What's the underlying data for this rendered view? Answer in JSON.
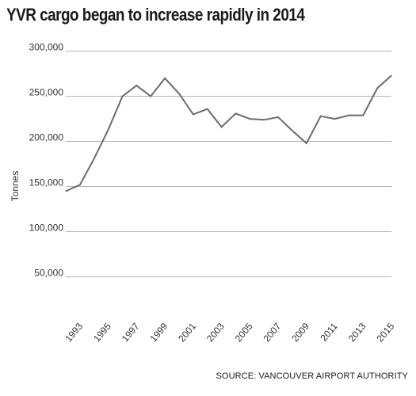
{
  "chart_data": {
    "type": "line",
    "title": "YVR cargo began to increase rapidly in 2014",
    "ylabel": "Tonnes",
    "xlabel": "",
    "source": "SOURCE: VANCOUVER AIRPORT AUTHORITY",
    "x": [
      1992,
      1993,
      1994,
      1995,
      1996,
      1997,
      1998,
      1999,
      2000,
      2001,
      2002,
      2003,
      2004,
      2005,
      2006,
      2007,
      2008,
      2009,
      2010,
      2011,
      2012,
      2013,
      2014,
      2015
    ],
    "series": [
      {
        "values": [
          144000,
          151000,
          180000,
          212000,
          249000,
          261000,
          249000,
          269000,
          252000,
          229000,
          235000,
          215000,
          230000,
          224000,
          223000,
          226000,
          211000,
          197000,
          227000,
          224000,
          228000,
          228000,
          258000,
          272000
        ]
      }
    ],
    "x_tick_labels": [
      "1993",
      "1995",
      "1997",
      "1999",
      "2001",
      "2003",
      "2005",
      "2007",
      "2009",
      "2011",
      "2013",
      "2015"
    ],
    "y_tick_labels": [
      "50,000",
      "100,000",
      "150,000",
      "200,000",
      "250,000",
      "300,000"
    ],
    "y_ticks": [
      50000,
      100000,
      150000,
      200000,
      250000,
      300000
    ],
    "ylim": [
      0,
      300000
    ],
    "xlim": [
      1992,
      2015
    ],
    "grid": "horizontal",
    "line_color": "#6b6b6b",
    "grid_color": "#b3b3b3"
  }
}
